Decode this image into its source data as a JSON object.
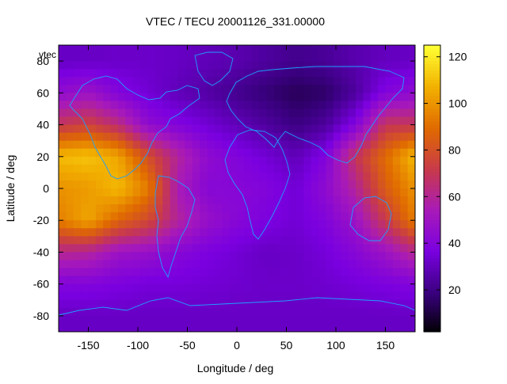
{
  "chart_data": {
    "type": "heatmap",
    "title": "VTEC / TECU 20001126_331.00000",
    "xlabel": "Longitude / deg",
    "ylabel": "Latitude / deg",
    "xlim": [
      -180,
      180
    ],
    "ylim": [
      -90,
      90
    ],
    "x_ticks": [
      -150,
      -100,
      -50,
      0,
      50,
      100,
      150
    ],
    "y_ticks": [
      80,
      60,
      40,
      20,
      0,
      -20,
      -40,
      -60,
      -80
    ],
    "x_tick_labels": [
      "-150",
      "-100",
      "-50",
      "0",
      "50",
      "100",
      "150"
    ],
    "y_tick_labels": [
      "80",
      "60",
      "40",
      "20",
      "0",
      "-20",
      "-40",
      "-60",
      "-80"
    ],
    "colorbar": {
      "range": [
        2,
        125
      ],
      "ticks": [
        20,
        40,
        60,
        80,
        100,
        120
      ],
      "tick_labels": [
        "20",
        "40",
        "60",
        "80",
        "100",
        "120"
      ],
      "palette": [
        "#000000",
        "#3a0080",
        "#7a00e0",
        "#a81ab8",
        "#c83a4a",
        "#e06a00",
        "#f2b000",
        "#ffff33"
      ]
    },
    "series": [
      {
        "name": "vtec",
        "lon": [
          -180,
          -150,
          -120,
          -90,
          -60,
          -30,
          0,
          30,
          60,
          90,
          120,
          150,
          180
        ],
        "lat": [
          80,
          60,
          40,
          20,
          0,
          -20,
          -40,
          -60,
          -80
        ],
        "values": [
          [
            32,
            32,
            33,
            33,
            32,
            30,
            28,
            25,
            22,
            24,
            28,
            31,
            32
          ],
          [
            45,
            50,
            40,
            35,
            30,
            26,
            22,
            18,
            14,
            16,
            25,
            40,
            45
          ],
          [
            70,
            75,
            65,
            45,
            40,
            35,
            30,
            25,
            20,
            25,
            40,
            70,
            70
          ],
          [
            110,
            112,
            105,
            80,
            60,
            45,
            40,
            35,
            30,
            40,
            70,
            90,
            110
          ],
          [
            100,
            102,
            110,
            95,
            55,
            42,
            42,
            40,
            35,
            45,
            60,
            85,
            100
          ],
          [
            95,
            105,
            88,
            78,
            60,
            48,
            42,
            38,
            35,
            40,
            50,
            72,
            95
          ],
          [
            62,
            60,
            50,
            48,
            42,
            38,
            35,
            32,
            33,
            36,
            42,
            50,
            62
          ],
          [
            40,
            40,
            38,
            36,
            36,
            35,
            34,
            33,
            33,
            34,
            36,
            38,
            40
          ],
          [
            32,
            32,
            32,
            32,
            32,
            32,
            32,
            32,
            32,
            32,
            32,
            32,
            32
          ]
        ]
      }
    ],
    "grid": false,
    "legend_position": "top-left",
    "overlay": "coastlines"
  }
}
